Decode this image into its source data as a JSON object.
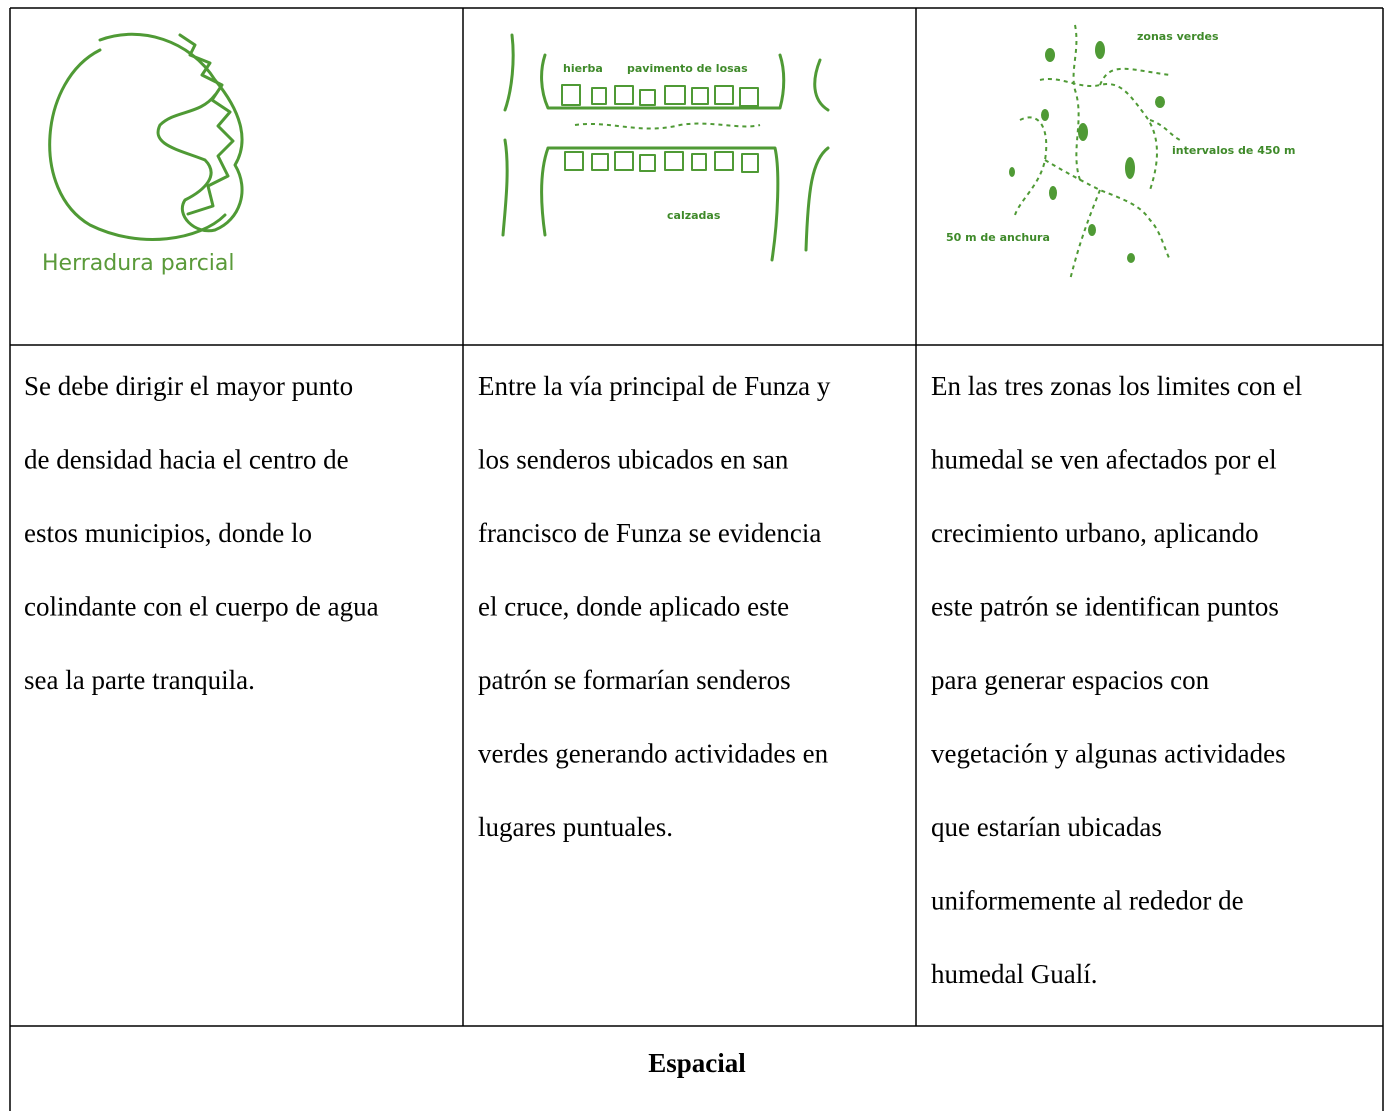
{
  "images": [
    {
      "labels": [
        "Herradura parcial"
      ]
    },
    {
      "labels": [
        "hierba",
        "pavimento de losas",
        "calzadas"
      ]
    },
    {
      "labels": [
        "zonas verdes",
        "intervalos de 450 m",
        "50 m de anchura"
      ]
    }
  ],
  "descriptions": [
    [
      "Se debe dirigir el mayor punto",
      "de densidad  hacia el centro de",
      "estos municipios, donde lo",
      "colindante con el cuerpo de agua",
      "sea la parte tranquila."
    ],
    [
      "Entre la vía principal de Funza y",
      "los senderos ubicados en san",
      "francisco de Funza se evidencia",
      "el cruce, donde aplicado este",
      "patrón se formarían senderos",
      "verdes generando actividades en",
      "lugares puntuales."
    ],
    [
      "En las tres zonas los limites con el",
      "humedal se ven afectados por el",
      "crecimiento urbano, aplicando",
      "este patrón se identifican puntos",
      "para generar espacios con",
      "vegetación y algunas actividades",
      "que estarían ubicadas",
      "uniformemente al rededor de",
      "humedal Gualí."
    ]
  ],
  "section": "Espacial"
}
